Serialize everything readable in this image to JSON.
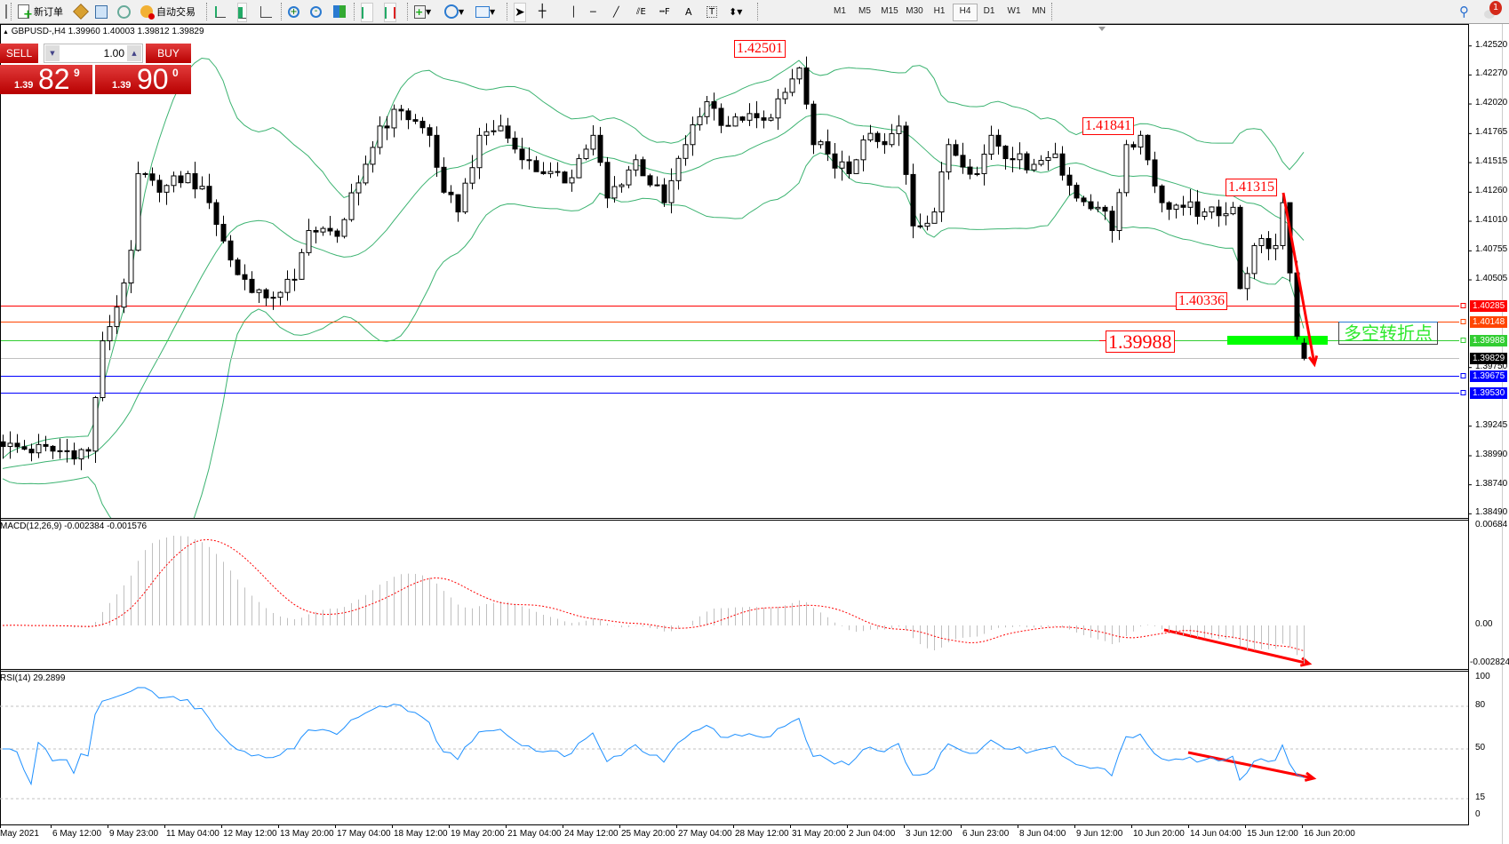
{
  "toolbar": {
    "new_order_label": "新订单",
    "auto_trading_label": "自动交易",
    "timeframes": [
      "M1",
      "M5",
      "M15",
      "M30",
      "H1",
      "H4",
      "D1",
      "W1",
      "MN"
    ],
    "active_timeframe": "H4",
    "notification_count": "1"
  },
  "chart": {
    "info": "GBPUSD-,H4  1.39960 1.40003 1.39812 1.39829",
    "macd_label": "MACD(12,26,9) -0.002384 -0.001576",
    "rsi_label": "RSI(14) 29.2899"
  },
  "trade_panel": {
    "sell_label": "SELL",
    "buy_label": "BUY",
    "lot_value": "1.00",
    "sell_prefix": "1.39",
    "sell_big": "82",
    "sell_sup": "9",
    "buy_prefix": "1.39",
    "buy_big": "90",
    "buy_sup": "0"
  },
  "annotations": {
    "high_label": "1.42501",
    "label_2": "1.41841",
    "label_3": "1.41315",
    "label_4": "1.40336",
    "pivot_label": "1.39988",
    "pivot_text": "多空转折点"
  },
  "price_axis": {
    "ticks": [
      "1.42520",
      "1.42270",
      "1.42020",
      "1.41765",
      "1.41515",
      "1.41260",
      "1.41010",
      "1.40755",
      "1.40505",
      "1.39750",
      "1.39245",
      "1.38990",
      "1.38740",
      "1.38490"
    ],
    "hlines": [
      {
        "price": "1.40285",
        "color": "#ff0000"
      },
      {
        "price": "1.40148",
        "color": "#ff4500"
      },
      {
        "price": "1.39988",
        "color": "#32cd32"
      },
      {
        "price": "1.39829",
        "color": "#000000",
        "line_color": "#c0c0c0"
      },
      {
        "price": "1.39675",
        "color": "#0000ff"
      },
      {
        "price": "1.39530",
        "color": "#0000ff"
      }
    ]
  },
  "macd_axis": {
    "top": "0.00684",
    "zero": "0.00",
    "bottom": "-0.002824"
  },
  "rsi_axis": {
    "ticks": [
      "100",
      "80",
      "50",
      "15",
      "0"
    ]
  },
  "time_axis": [
    "May 2021",
    "6 May 12:00",
    "9 May 23:00",
    "11 May 04:00",
    "12 May 12:00",
    "13 May 20:00",
    "17 May 04:00",
    "18 May 12:00",
    "19 May 20:00",
    "21 May 04:00",
    "24 May 12:00",
    "25 May 20:00",
    "27 May 04:00",
    "28 May 12:00",
    "31 May 20:00",
    "2 Jun 04:00",
    "3 Jun 12:00",
    "6 Jun 23:00",
    "8 Jun 04:00",
    "9 Jun 12:00",
    "10 Jun 20:00",
    "14 Jun 04:00",
    "15 Jun 12:00",
    "16 Jun 20:00"
  ],
  "chart_data": {
    "type": "candlestick",
    "symbol": "GBPUSD-",
    "timeframe": "H4",
    "ylim": [
      1.3849,
      1.4252
    ],
    "last": {
      "open": 1.3996,
      "high": 1.40003,
      "low": 1.39812,
      "close": 1.39829
    },
    "close_path": [
      [
        0,
        1.3907
      ],
      [
        7,
        1.3903
      ],
      [
        12,
        1.3903
      ],
      [
        14,
        1.3998
      ],
      [
        16,
        1.4027
      ],
      [
        18,
        1.4076
      ],
      [
        19,
        1.4142
      ],
      [
        22,
        1.4126
      ],
      [
        26,
        1.4142
      ],
      [
        29,
        1.4117
      ],
      [
        31,
        1.4084
      ],
      [
        33,
        1.4055
      ],
      [
        37,
        1.4035
      ],
      [
        41,
        1.4051
      ],
      [
        43,
        1.4093
      ],
      [
        47,
        1.4088
      ],
      [
        50,
        1.4134
      ],
      [
        53,
        1.4183
      ],
      [
        56,
        1.4196
      ],
      [
        60,
        1.4175
      ],
      [
        62,
        1.4126
      ],
      [
        64,
        1.4109
      ],
      [
        67,
        1.4175
      ],
      [
        70,
        1.4183
      ],
      [
        73,
        1.4154
      ],
      [
        76,
        1.4142
      ],
      [
        79,
        1.4134
      ],
      [
        83,
        1.4175
      ],
      [
        85,
        1.4121
      ],
      [
        89,
        1.4154
      ],
      [
        93,
        1.4117
      ],
      [
        96,
        1.4167
      ],
      [
        99,
        1.4204
      ],
      [
        102,
        1.4183
      ],
      [
        104,
        1.4188
      ],
      [
        107,
        1.4188
      ],
      [
        110,
        1.4212
      ],
      [
        112,
        1.4233
      ],
      [
        114,
        1.4167
      ],
      [
        116,
        1.4159
      ],
      [
        119,
        1.4142
      ],
      [
        121,
        1.4171
      ],
      [
        124,
        1.4167
      ],
      [
        126,
        1.4183
      ],
      [
        128,
        1.4097
      ],
      [
        131,
        1.4109
      ],
      [
        133,
        1.4167
      ],
      [
        137,
        1.4142
      ],
      [
        139,
        1.4175
      ],
      [
        142,
        1.4154
      ],
      [
        145,
        1.415
      ],
      [
        148,
        1.4159
      ],
      [
        151,
        1.4121
      ],
      [
        154,
        1.4113
      ],
      [
        156,
        1.4093
      ],
      [
        158,
        1.4167
      ],
      [
        160,
        1.4175
      ],
      [
        163,
        1.4117
      ],
      [
        166,
        1.4113
      ],
      [
        169,
        1.4109
      ],
      [
        173,
        1.4113
      ],
      [
        174,
        1.4043
      ],
      [
        176,
        1.408
      ],
      [
        179,
        1.408
      ],
      [
        180,
        1.4117
      ],
      [
        182,
        1.4002
      ],
      [
        183,
        1.39829
      ]
    ],
    "indicators": [
      "Bollinger Bands(20,2)",
      "MACD(12,26,9)",
      "RSI(14)"
    ],
    "rsi_levels": [
      80,
      50,
      15
    ],
    "colors": {
      "bands": "#3cb371",
      "macd_hist": "#c0c0c0",
      "macd_signal": "#ff0000",
      "rsi": "#1e90ff",
      "arrow": "#ff0000",
      "pivot_zone": "#00ff00"
    }
  }
}
